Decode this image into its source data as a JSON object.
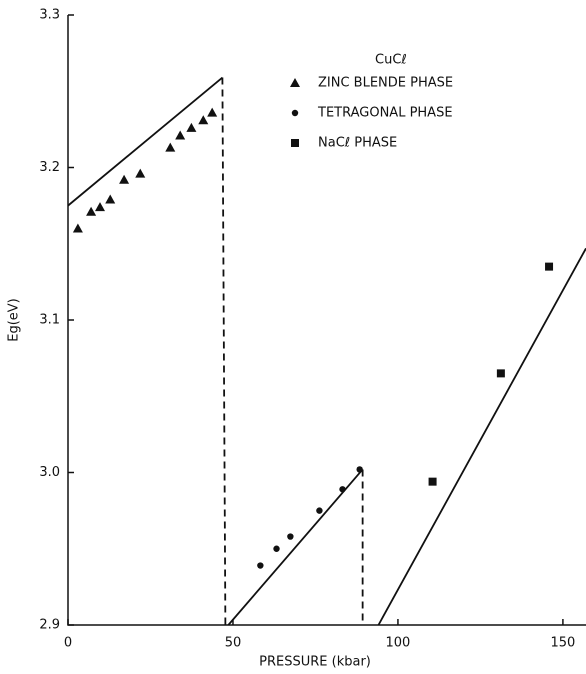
{
  "chart_data": {
    "type": "scatter",
    "annotation": "CuCℓ",
    "xlabel": "PRESSURE (kbar)",
    "ylabel": "Eg(eV)",
    "xlim": [
      0,
      157
    ],
    "ylim": [
      2.9,
      3.3
    ],
    "xticks": [
      0,
      50,
      100,
      150
    ],
    "yticks": [
      2.9,
      {
        "value": 3.0,
        "label": "3.0"
      },
      3.1,
      3.2,
      3.3
    ],
    "color": "#111111",
    "series": [
      {
        "name": "ZINC BLENDE PHASE",
        "marker": "triangle",
        "x": [
          3.0,
          7.0,
          9.7,
          12.8,
          17.0,
          21.9,
          31.0,
          34.0,
          37.4,
          41.0,
          43.7
        ],
        "values": [
          3.16,
          3.171,
          3.174,
          3.179,
          3.192,
          3.196,
          3.213,
          3.221,
          3.226,
          3.231,
          3.236
        ],
        "fit": {
          "x": [
            0,
            46.8
          ],
          "values": [
            3.175,
            3.259
          ]
        }
      },
      {
        "name": "TETRAGONAL PHASE",
        "marker": "circle",
        "x": [
          58.3,
          63.2,
          67.4,
          76.2,
          83.2,
          88.4
        ],
        "values": [
          2.939,
          2.95,
          2.958,
          2.975,
          2.989,
          3.002
        ],
        "fit": {
          "x": [
            48.6,
            89.3
          ],
          "values": [
            2.9,
            3.002
          ]
        }
      },
      {
        "name": "NaCℓ PHASE",
        "marker": "square",
        "x": [
          110.5,
          131.2,
          145.8
        ],
        "values": [
          2.994,
          3.065,
          3.135
        ],
        "fit": {
          "x": [
            94.1,
            157
          ],
          "values": [
            2.9,
            3.147
          ]
        }
      }
    ],
    "dashed_lines": [
      {
        "x": [
          46.8,
          47.7
        ],
        "values": [
          3.259,
          2.9
        ]
      },
      {
        "x": [
          89.3,
          89.3
        ],
        "values": [
          3.002,
          2.9
        ]
      }
    ]
  }
}
